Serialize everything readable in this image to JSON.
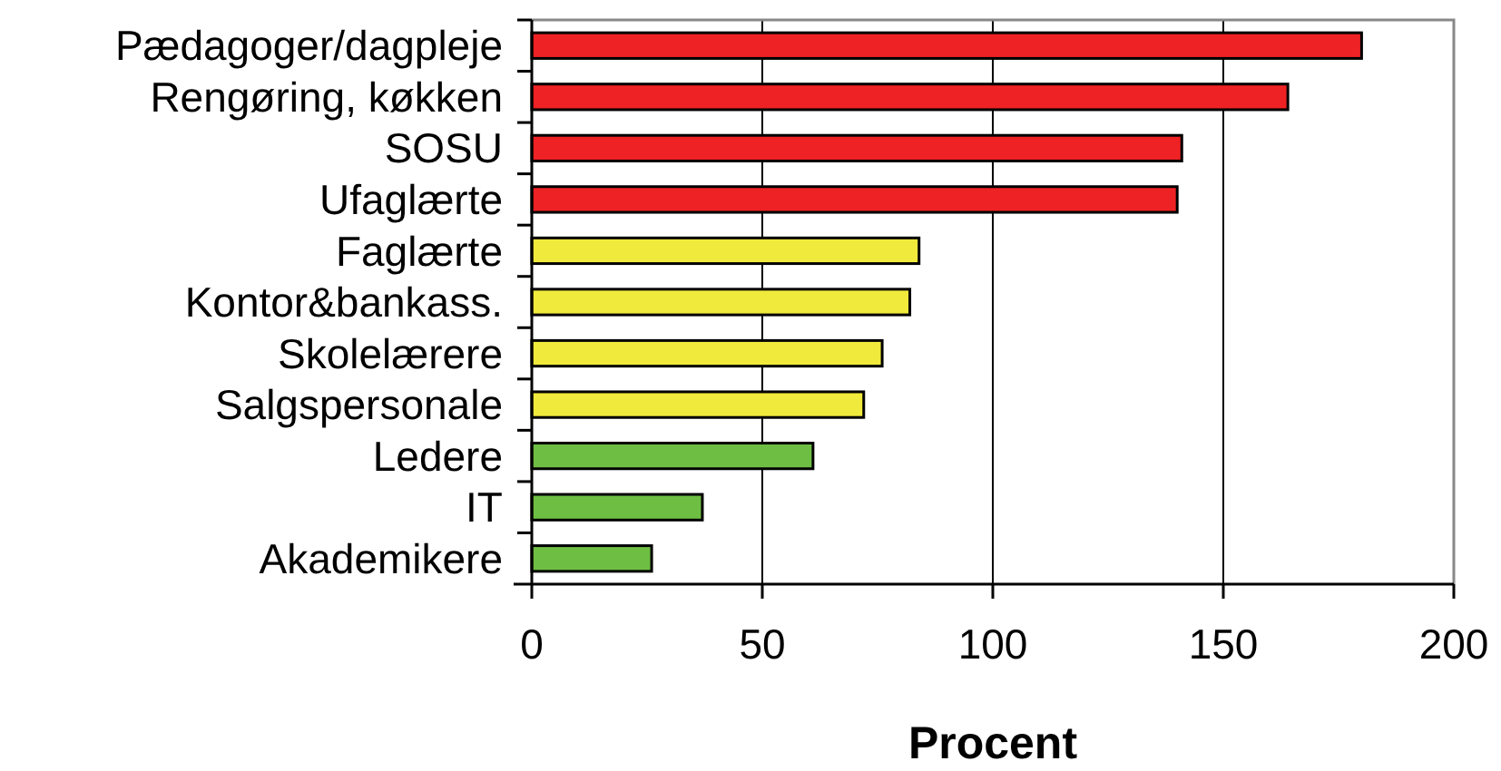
{
  "chart_data": {
    "type": "bar",
    "orientation": "horizontal",
    "xlabel": "Procent",
    "categories": [
      "Pædagoger/dagpleje",
      "Rengøring, køkken",
      "SOSU",
      "Ufaglærte",
      "Faglærte",
      "Kontor&bankass.",
      "Skolelærere",
      "Salgspersonale",
      "Ledere",
      "IT",
      "Akademikere"
    ],
    "values": [
      180,
      164,
      141,
      140,
      84,
      82,
      76,
      72,
      61,
      37,
      26
    ],
    "colors": [
      "#ee2224",
      "#ee2224",
      "#ee2224",
      "#ee2224",
      "#f0ea3c",
      "#f0ea3c",
      "#f0ea3c",
      "#f0ea3c",
      "#6fbe44",
      "#6fbe44",
      "#6fbe44"
    ],
    "xlim": [
      0,
      200
    ],
    "xticks": [
      0,
      50,
      100,
      150,
      200
    ],
    "grid": "x"
  }
}
